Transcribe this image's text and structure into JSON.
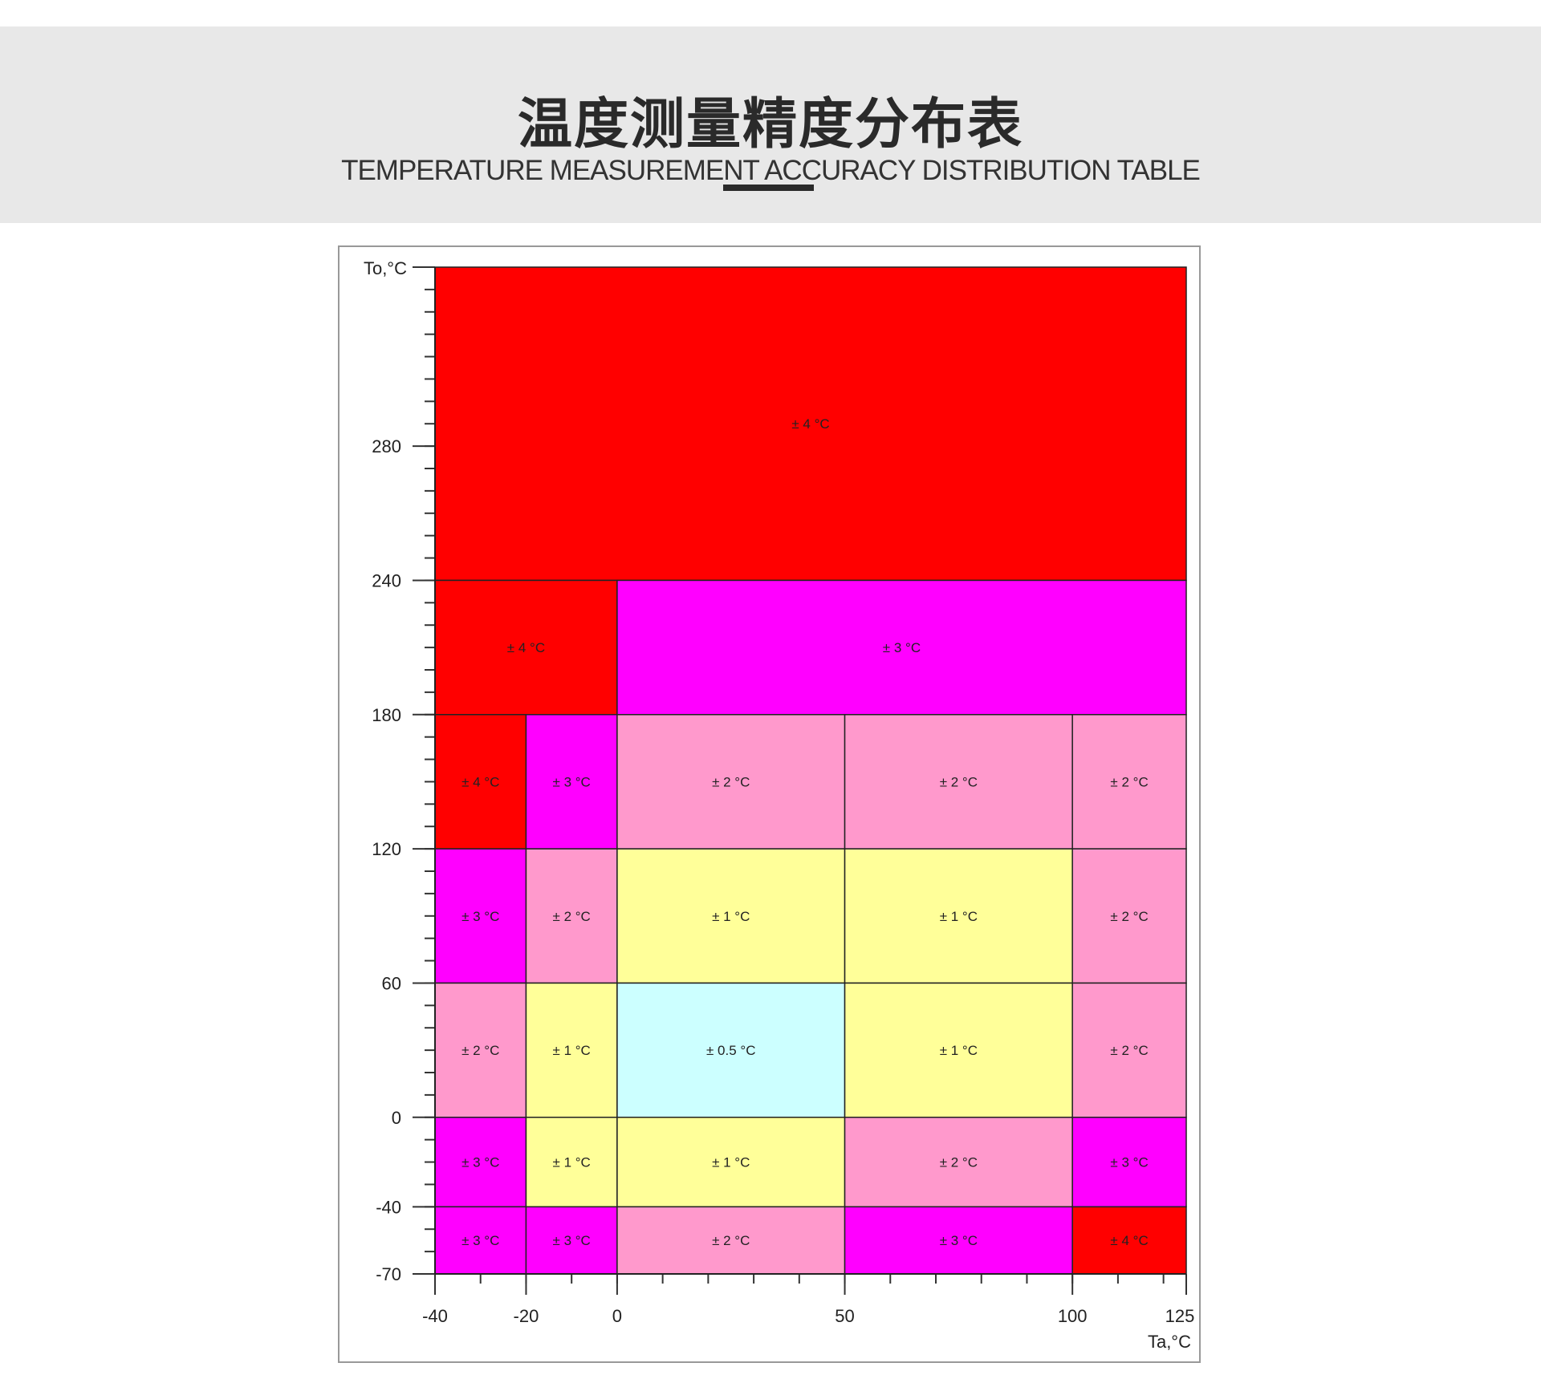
{
  "header": {
    "title": "温度测量精度分布表",
    "subtitle": "TEMPERATURE MEASUREMENT ACCURACY DISTRIBUTION TABLE"
  },
  "chart_data": {
    "type": "heatmap",
    "xlabel": "Ta,°C",
    "ylabel": "To,°C",
    "x_ticks": [
      -40,
      -20,
      0,
      50,
      100,
      125
    ],
    "y_ticks": [
      -70,
      -40,
      0,
      60,
      120,
      180,
      240,
      280
    ],
    "xlim": [
      -40,
      125
    ],
    "grid": false,
    "colors": {
      "±4 °C": "#ff0000",
      "±3 °C": "#ff00ff",
      "±2 °C": "#ff99cc",
      "±1 °C": "#ffff99",
      "±0.5 °C": "#ccffff"
    },
    "cells": [
      {
        "x": [
          -40,
          125
        ],
        "y": [
          240,
          null
        ],
        "label": "± 4 °C",
        "accuracy": 4
      },
      {
        "x": [
          -40,
          0
        ],
        "y": [
          180,
          240
        ],
        "label": "± 4 °C",
        "accuracy": 4
      },
      {
        "x": [
          0,
          125
        ],
        "y": [
          180,
          240
        ],
        "label": "± 3 °C",
        "accuracy": 3
      },
      {
        "x": [
          -40,
          -20
        ],
        "y": [
          120,
          180
        ],
        "label": "± 4 °C",
        "accuracy": 4
      },
      {
        "x": [
          -20,
          0
        ],
        "y": [
          120,
          180
        ],
        "label": "± 3 °C",
        "accuracy": 3
      },
      {
        "x": [
          0,
          50
        ],
        "y": [
          120,
          180
        ],
        "label": "± 2 °C",
        "accuracy": 2
      },
      {
        "x": [
          50,
          100
        ],
        "y": [
          120,
          180
        ],
        "label": "± 2 °C",
        "accuracy": 2
      },
      {
        "x": [
          100,
          125
        ],
        "y": [
          120,
          180
        ],
        "label": "± 2 °C",
        "accuracy": 2
      },
      {
        "x": [
          -40,
          -20
        ],
        "y": [
          60,
          120
        ],
        "label": "± 3 °C",
        "accuracy": 3
      },
      {
        "x": [
          -20,
          0
        ],
        "y": [
          60,
          120
        ],
        "label": "± 2 °C",
        "accuracy": 2
      },
      {
        "x": [
          0,
          50
        ],
        "y": [
          60,
          120
        ],
        "label": "± 1 °C",
        "accuracy": 1
      },
      {
        "x": [
          50,
          100
        ],
        "y": [
          60,
          120
        ],
        "label": "± 1 °C",
        "accuracy": 1
      },
      {
        "x": [
          100,
          125
        ],
        "y": [
          60,
          120
        ],
        "label": "± 2 °C",
        "accuracy": 2
      },
      {
        "x": [
          -40,
          -20
        ],
        "y": [
          0,
          60
        ],
        "label": "± 2 °C",
        "accuracy": 2
      },
      {
        "x": [
          -20,
          0
        ],
        "y": [
          0,
          60
        ],
        "label": "± 1 °C",
        "accuracy": 1
      },
      {
        "x": [
          0,
          50
        ],
        "y": [
          0,
          60
        ],
        "label": "± 0.5 °C",
        "accuracy": 0.5
      },
      {
        "x": [
          50,
          100
        ],
        "y": [
          0,
          60
        ],
        "label": "± 1 °C",
        "accuracy": 1
      },
      {
        "x": [
          100,
          125
        ],
        "y": [
          0,
          60
        ],
        "label": "± 2 °C",
        "accuracy": 2
      },
      {
        "x": [
          -40,
          -20
        ],
        "y": [
          -40,
          0
        ],
        "label": "± 3 °C",
        "accuracy": 3
      },
      {
        "x": [
          -20,
          0
        ],
        "y": [
          -40,
          0
        ],
        "label": "± 1 °C",
        "accuracy": 1
      },
      {
        "x": [
          0,
          50
        ],
        "y": [
          -40,
          0
        ],
        "label": "± 1 °C",
        "accuracy": 1
      },
      {
        "x": [
          50,
          100
        ],
        "y": [
          -40,
          0
        ],
        "label": "± 2 °C",
        "accuracy": 2
      },
      {
        "x": [
          100,
          125
        ],
        "y": [
          -40,
          0
        ],
        "label": "± 3 °C",
        "accuracy": 3
      },
      {
        "x": [
          -40,
          -20
        ],
        "y": [
          -70,
          -40
        ],
        "label": "± 3 °C",
        "accuracy": 3
      },
      {
        "x": [
          -20,
          0
        ],
        "y": [
          -70,
          -40
        ],
        "label": "± 3 °C",
        "accuracy": 3
      },
      {
        "x": [
          0,
          50
        ],
        "y": [
          -70,
          -40
        ],
        "label": "± 2 °C",
        "accuracy": 2
      },
      {
        "x": [
          50,
          100
        ],
        "y": [
          -70,
          -40
        ],
        "label": "± 3 °C",
        "accuracy": 3
      },
      {
        "x": [
          100,
          125
        ],
        "y": [
          -70,
          -40
        ],
        "label": "± 4 °C",
        "accuracy": 4
      }
    ]
  }
}
